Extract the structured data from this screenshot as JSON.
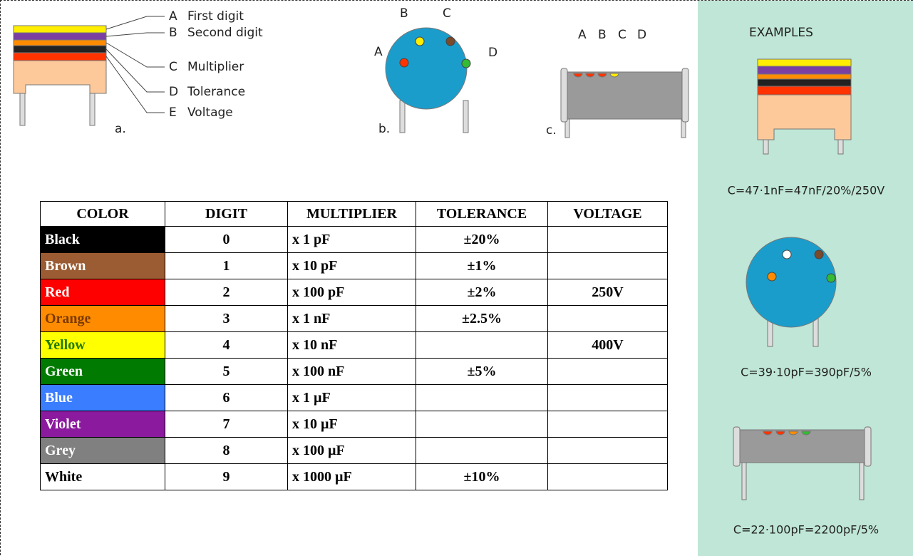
{
  "diagram_a": {
    "label": "a.",
    "legend": [
      {
        "letter": "A",
        "text": "First digit"
      },
      {
        "letter": "B",
        "text": "Second digit"
      },
      {
        "letter": "C",
        "text": "Multiplier"
      },
      {
        "letter": "D",
        "text": "Tolerance"
      },
      {
        "letter": "E",
        "text": "Voltage"
      }
    ]
  },
  "diagram_b": {
    "label": "b.",
    "points": [
      "A",
      "B",
      "C",
      "D"
    ]
  },
  "diagram_c": {
    "label": "c.",
    "points": [
      "A",
      "B",
      "C",
      "D"
    ]
  },
  "table": {
    "headers": [
      "COLOR",
      "DIGIT",
      "MULTIPLIER",
      "TOLERANCE",
      "VOLTAGE"
    ],
    "rows": [
      [
        "Black",
        "0",
        "x 1 pF",
        "±20%",
        ""
      ],
      [
        "Brown",
        "1",
        "x 10 pF",
        "±1%",
        ""
      ],
      [
        "Red",
        "2",
        "x 100 pF",
        "±2%",
        "250V"
      ],
      [
        "Orange",
        "3",
        "x 1 nF",
        "±2.5%",
        ""
      ],
      [
        "Yellow",
        "4",
        "x 10 nF",
        "",
        "400V"
      ],
      [
        "Green",
        "5",
        "x 100 nF",
        "±5%",
        ""
      ],
      [
        "Blue",
        "6",
        "x 1 µF",
        "",
        ""
      ],
      [
        "Violet",
        "7",
        "x 10 µF",
        "",
        ""
      ],
      [
        "Grey",
        "8",
        "x 100 µF",
        "",
        ""
      ],
      [
        "White",
        "9",
        "x 1000 µF",
        "±10%",
        ""
      ]
    ]
  },
  "examples": {
    "title": "EXAMPLES",
    "captions": [
      "C=47·1nF=47nF/20%/250V",
      "C=39·10pF=390pF/5%",
      "C=22·100pF=2200pF/5%"
    ]
  }
}
